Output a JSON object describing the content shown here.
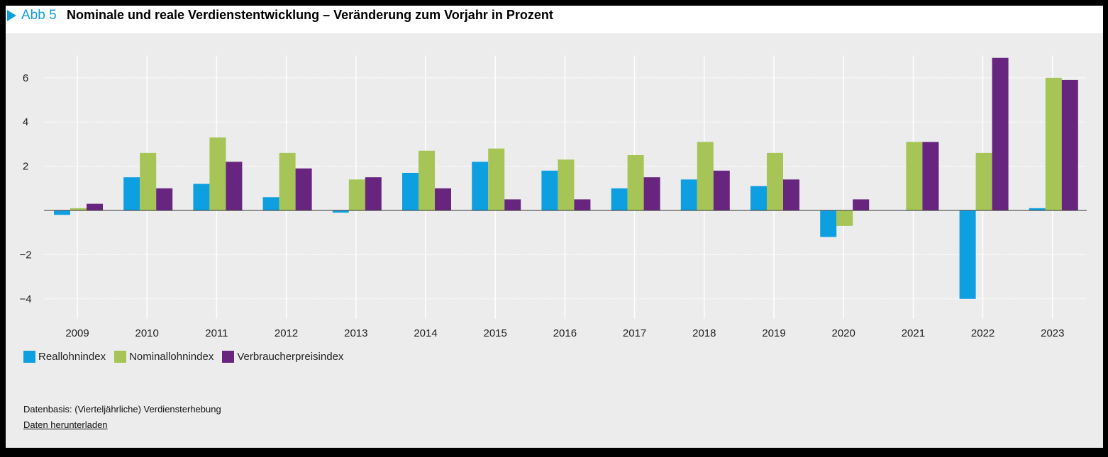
{
  "header": {
    "figure_label": "Abb 5",
    "title": "Nominale und reale Verdienstentwicklung – Veränderung zum Vorjahr in Prozent"
  },
  "footer": {
    "source": "Datenbasis: (Vierteljährliche) Verdiensterhebung",
    "download_link": "Daten herunterladen"
  },
  "chart_data": {
    "type": "bar",
    "title": "Nominale und reale Verdienstentwicklung – Veränderung zum Vorjahr in Prozent",
    "categories": [
      "2009",
      "2010",
      "2011",
      "2012",
      "2013",
      "2014",
      "2015",
      "2016",
      "2017",
      "2018",
      "2019",
      "2020",
      "2021",
      "2022",
      "2023"
    ],
    "series": [
      {
        "name": "Reallohnindex",
        "color": "#0e9fe0",
        "values": [
          -0.2,
          1.5,
          1.2,
          0.6,
          -0.1,
          1.7,
          2.2,
          1.8,
          1.0,
          1.4,
          1.1,
          -1.2,
          0.0,
          -4.0,
          0.1
        ]
      },
      {
        "name": "Nominallohnindex",
        "color": "#a6c556",
        "values": [
          0.1,
          2.6,
          3.3,
          2.6,
          1.4,
          2.7,
          2.8,
          2.3,
          2.5,
          3.1,
          2.6,
          -0.7,
          3.1,
          2.6,
          6.0
        ]
      },
      {
        "name": "Verbraucherpreisindex",
        "color": "#68257f",
        "values": [
          0.3,
          1.0,
          2.2,
          1.9,
          1.5,
          1.0,
          0.5,
          0.5,
          1.5,
          1.8,
          1.4,
          0.5,
          3.1,
          6.9,
          5.9
        ]
      }
    ],
    "yticks": [
      -4,
      -2,
      0,
      2,
      4,
      6
    ],
    "ytick_labels": [
      "−4",
      "−2",
      "",
      "2",
      "4",
      "6"
    ],
    "ylim": [
      -4.9,
      7.0
    ],
    "grid": true,
    "legend_position": "bottom-left",
    "xlabel": "",
    "ylabel": ""
  }
}
